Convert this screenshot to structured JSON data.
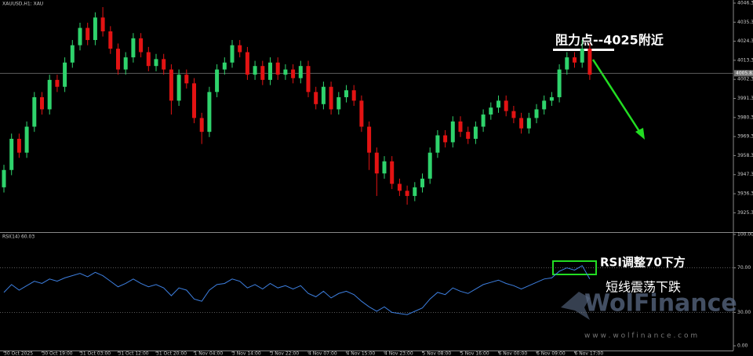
{
  "chart_data": [
    {
      "type": "candlestick",
      "title": "XAUUSD,H1: XAU",
      "categories": [
        "30 Oct 2025",
        null,
        null,
        null,
        null,
        "30 Oct 19:00",
        null,
        null,
        null,
        null,
        "31 Oct 03:00",
        null,
        null,
        null,
        null,
        "31 Oct 12:00",
        null,
        null,
        null,
        null,
        "31 Oct 20:00",
        null,
        null,
        null,
        null,
        "1 Nov 04:00",
        null,
        null,
        null,
        null,
        "3 Nov 14:00",
        null,
        null,
        null,
        null,
        "3 Nov 22:00",
        null,
        null,
        null,
        null,
        "4 Nov 07:00",
        null,
        null,
        null,
        null,
        "4 Nov 15:00",
        null,
        null,
        null,
        null,
        "4 Nov 23:00",
        null,
        null,
        null,
        null,
        "5 Nov 08:00",
        null,
        null,
        null,
        null,
        "5 Nov 16:00",
        null,
        null,
        null,
        null,
        "6 Nov 00:00",
        null,
        null,
        null,
        null,
        "6 Nov 09:00",
        null,
        null,
        null,
        null,
        "6 Nov 17:00",
        null,
        null
      ],
      "open": [
        3940,
        3950,
        3968,
        3960,
        3975,
        3992,
        3985,
        4002,
        3998,
        4012,
        4022,
        4032,
        4025,
        4038,
        4030,
        4020,
        4008,
        4015,
        4026,
        4018,
        4010,
        4014,
        4008,
        3990,
        4005,
        4000,
        3980,
        3972,
        3995,
        4008,
        4012,
        4022,
        4018,
        4005,
        4010,
        4002,
        4012,
        4005,
        4008,
        4003,
        4010,
        3995,
        3988,
        3998,
        3985,
        3992,
        3996,
        3990,
        3975,
        3960,
        3948,
        3955,
        3942,
        3938,
        3935,
        3940,
        3945,
        3960,
        3970,
        3966,
        3978,
        3972,
        3968,
        3975,
        3982,
        3986,
        3990,
        3984,
        3980,
        3974,
        3980,
        3985,
        3990,
        3992,
        4008,
        4015,
        4012,
        4020
      ],
      "high": [
        3953,
        3971,
        3971,
        3978,
        3995,
        3995,
        4005,
        4005,
        4015,
        4025,
        4035,
        4035,
        4041,
        4044,
        4033,
        4023,
        4018,
        4029,
        4029,
        4021,
        4017,
        4017,
        4011,
        4008,
        4008,
        4003,
        3983,
        3998,
        4011,
        4015,
        4025,
        4025,
        4021,
        4013,
        4013,
        4015,
        4015,
        4011,
        4011,
        4013,
        4013,
        3998,
        4001,
        4001,
        3995,
        3999,
        3999,
        3993,
        3978,
        3963,
        3958,
        3958,
        3945,
        3941,
        3943,
        3948,
        3963,
        3973,
        3973,
        3981,
        3981,
        3975,
        3978,
        3985,
        3989,
        3993,
        3993,
        3987,
        3983,
        3983,
        3988,
        3993,
        3995,
        4011,
        4018,
        4018,
        4025,
        4023
      ],
      "low": [
        3937,
        3947,
        3957,
        3957,
        3972,
        3982,
        3982,
        3995,
        3995,
        4009,
        4019,
        4022,
        4022,
        4027,
        4017,
        4005,
        4005,
        4012,
        4015,
        4007,
        4007,
        4005,
        3982,
        3987,
        3997,
        3977,
        3965,
        3969,
        3992,
        4005,
        4009,
        4015,
        4002,
        4002,
        3999,
        3999,
        4002,
        4002,
        4000,
        4000,
        3992,
        3985,
        3985,
        3982,
        3982,
        3989,
        3987,
        3972,
        3950,
        3935,
        3945,
        3939,
        3935,
        3930,
        3932,
        3937,
        3942,
        3957,
        3963,
        3963,
        3969,
        3965,
        3965,
        3972,
        3979,
        3983,
        3981,
        3977,
        3971,
        3971,
        3977,
        3982,
        3987,
        3989,
        4005,
        4009,
        4009,
        4002
      ],
      "close": [
        3950,
        3968,
        3960,
        3975,
        3992,
        3985,
        4002,
        3998,
        4012,
        4022,
        4032,
        4025,
        4038,
        4030,
        4020,
        4008,
        4015,
        4026,
        4018,
        4010,
        4014,
        4008,
        3990,
        4005,
        4000,
        3980,
        3972,
        3995,
        4008,
        4012,
        4022,
        4018,
        4005,
        4010,
        4002,
        4012,
        4005,
        4008,
        4003,
        4010,
        3995,
        3988,
        3998,
        3985,
        3992,
        3996,
        3990,
        3975,
        3960,
        3948,
        3955,
        3942,
        3938,
        3935,
        3940,
        3945,
        3960,
        3970,
        3966,
        3978,
        3972,
        3968,
        3975,
        3982,
        3986,
        3990,
        3984,
        3980,
        3974,
        3980,
        3985,
        3990,
        3992,
        4008,
        4015,
        4012,
        4020,
        4005
      ],
      "up_color": "#2fd36c",
      "down_color": "#e31313",
      "current_price": 4005.83,
      "ylim": [
        3914.6,
        4048.1
      ],
      "yticks": [
        {
          "value": 4046.3,
          "label": "4046.30"
        },
        {
          "value": 4035.3,
          "label": "4035.30"
        },
        {
          "value": 4024.3,
          "label": "4024.30"
        },
        {
          "value": 4013.3,
          "label": "4013.30"
        },
        {
          "value": 4002.3,
          "label": "4002.30"
        },
        {
          "value": 3991.3,
          "label": "3991.30"
        },
        {
          "value": 3980.3,
          "label": "3980.30"
        },
        {
          "value": 3969.3,
          "label": "3969.30"
        },
        {
          "value": 3958.3,
          "label": "3958.30"
        },
        {
          "value": 3947.3,
          "label": "3947.30"
        },
        {
          "value": 3936.3,
          "label": "3936.30"
        },
        {
          "value": 3925.3,
          "label": "3925.30"
        }
      ]
    },
    {
      "type": "line",
      "title": "RSI(14) 60.03",
      "color": "#3d7fe0",
      "values": [
        48,
        55,
        50,
        54,
        58,
        56,
        60,
        58,
        61,
        63,
        65,
        62,
        66,
        63,
        58,
        53,
        56,
        60,
        56,
        53,
        55,
        52,
        45,
        52,
        50,
        42,
        40,
        50,
        55,
        56,
        60,
        58,
        52,
        55,
        51,
        56,
        52,
        54,
        51,
        54,
        47,
        44,
        49,
        43,
        47,
        49,
        46,
        40,
        35,
        31,
        35,
        30,
        29,
        28,
        31,
        34,
        42,
        48,
        46,
        52,
        49,
        47,
        51,
        55,
        57,
        59,
        56,
        54,
        51,
        54,
        57,
        60,
        61,
        67,
        70,
        68,
        72,
        60
      ],
      "ylim": [
        0,
        100
      ],
      "yticks": [
        {
          "value": 100,
          "label": "100.00"
        },
        {
          "value": 70,
          "label": "70.00"
        },
        {
          "value": 30,
          "label": "30.00"
        },
        {
          "value": 0,
          "label": "0.00"
        }
      ],
      "levels": [
        70,
        30
      ]
    }
  ],
  "annotations": [
    "阻力点--4025附近",
    "RSI调整70下方",
    "短线震荡下跌"
  ],
  "watermark": {
    "brand": "WolFinance",
    "url": "w w w . w o l f i n a n c e . c o m"
  }
}
